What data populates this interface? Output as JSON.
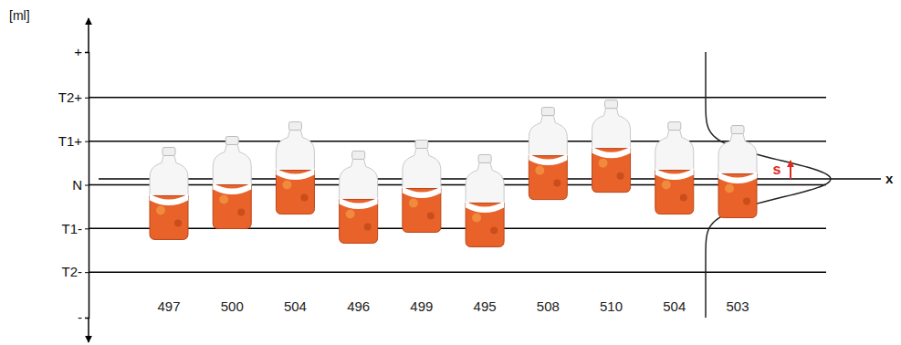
{
  "chart_data": {
    "type": "scatter",
    "marker": "bottle",
    "y_label": "[ml]",
    "values": [
      497,
      500,
      504,
      496,
      499,
      495,
      508,
      510,
      504,
      503
    ],
    "color": "#e8622a",
    "data_labels": true,
    "ylim": [
      463.5,
      536.5
    ],
    "yticks": [
      {
        "value": 536.5,
        "label": "+"
      },
      {
        "value": 524,
        "label": "T2+"
      },
      {
        "value": 512,
        "label": "T1+"
      },
      {
        "value": 500,
        "label": "N"
      },
      {
        "value": 488,
        "label": "T1-"
      },
      {
        "value": 476,
        "label": "T2-"
      },
      {
        "value": 463.5,
        "label": "-"
      }
    ],
    "grid": true,
    "mean": {
      "value": 501.6,
      "label": "x"
    },
    "sd": {
      "value": 5.06,
      "label": "s"
    }
  }
}
